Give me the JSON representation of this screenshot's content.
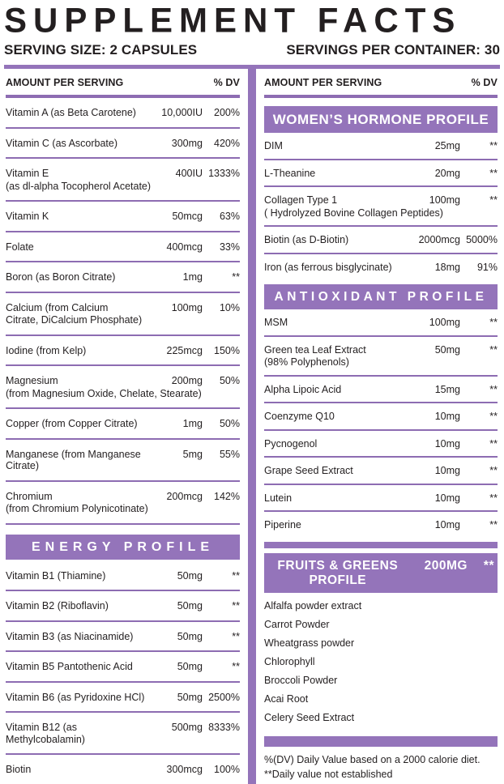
{
  "title": "SUPPLEMENT FACTS",
  "serving_size": "SERVING SIZE: 2 CAPSULES",
  "servings_per_container": "SERVINGS PER CONTAINER: 30",
  "colors": {
    "purple": "#9474ba",
    "text": "#231f20",
    "banner_text": "#ffffff"
  },
  "left_column": {
    "header": {
      "amount_label": "AMOUNT PER SERVING",
      "dv_label": "% DV"
    },
    "vitamins_minerals_rows": [
      {
        "name": "Vitamin A (as Beta Carotene)",
        "amount": "10,000IU",
        "dv": "200%"
      },
      {
        "name": "Vitamin C (as Ascorbate)",
        "amount": "300mg",
        "dv": "420%"
      },
      {
        "name": "Vitamin E",
        "sub": "(as dl-alpha Tocopherol Acetate)",
        "amount": "400IU",
        "dv": "1333%"
      },
      {
        "name": "Vitamin K",
        "amount": "50mcg",
        "dv": "63%"
      },
      {
        "name": "Folate",
        "amount": "400mcg",
        "dv": "33%"
      },
      {
        "name": "Boron (as Boron Citrate)",
        "amount": "1mg",
        "dv": "**"
      },
      {
        "name": "Calcium (from Calcium",
        "sub": "Citrate, DiCalcium Phosphate)",
        "amount": "100mg",
        "dv": "10%"
      },
      {
        "name": "Iodine (from Kelp)",
        "amount": "225mcg",
        "dv": "150%"
      },
      {
        "name": "Magnesium",
        "sub": "(from Magnesium Oxide, Chelate, Stearate)",
        "amount": "200mg",
        "dv": "50%"
      },
      {
        "name": "Copper (from Copper Citrate)",
        "amount": "1mg",
        "dv": "50%"
      },
      {
        "name": "Manganese (from Manganese Citrate)",
        "amount": "5mg",
        "dv": "55%"
      },
      {
        "name": "Chromium",
        "sub": "(from Chromium Polynicotinate)",
        "amount": "200mcg",
        "dv": "142%"
      }
    ],
    "energy_profile": {
      "title": "ENERGY PROFILE",
      "rows": [
        {
          "name": "Vitamin B1 (Thiamine)",
          "amount": "50mg",
          "dv": "**"
        },
        {
          "name": "Vitamin B2 (Riboflavin)",
          "amount": "50mg",
          "dv": "**"
        },
        {
          "name": "Vitamin B3 (as Niacinamide)",
          "amount": "50mg",
          "dv": "**"
        },
        {
          "name": "Vitamin B5 Pantothenic Acid",
          "amount": "50mg",
          "dv": "**"
        },
        {
          "name": "Vitamin B6 (as Pyridoxine HCl)",
          "amount": "50mg",
          "dv": "2500%"
        },
        {
          "name": "Vitamin B12 (as Methylcobalamin)",
          "amount": "500mg",
          "dv": "8333%"
        },
        {
          "name": "Biotin",
          "amount": "300mcg",
          "dv": "100%"
        }
      ]
    }
  },
  "right_column": {
    "header": {
      "amount_label": "AMOUNT PER SERVING",
      "dv_label": "% DV"
    },
    "womens_hormone_profile": {
      "title": "WOMEN’S HORMONE PROFILE",
      "rows": [
        {
          "name": "DIM",
          "amount": "25mg",
          "dv": "**"
        },
        {
          "name": "L-Theanine",
          "amount": "20mg",
          "dv": "**"
        },
        {
          "name": "Collagen Type 1",
          "sub": "( Hydrolyzed Bovine Collagen Peptides)",
          "amount": "100mg",
          "dv": "**"
        },
        {
          "name": "Biotin (as D-Biotin)",
          "amount": "2000mcg",
          "dv": "5000%"
        },
        {
          "name": "Iron (as ferrous bisglycinate)",
          "amount": "18mg",
          "dv": "91%"
        }
      ]
    },
    "antioxidant_profile": {
      "title": "ANTIOXIDANT PROFILE",
      "rows": [
        {
          "name": "MSM",
          "amount": "100mg",
          "dv": "**"
        },
        {
          "name": "Green tea Leaf Extract",
          "sub": "(98% Polyphenols)",
          "amount": "50mg",
          "dv": "**"
        },
        {
          "name": "Alpha Lipoic Acid",
          "amount": "15mg",
          "dv": "**"
        },
        {
          "name": "Coenzyme Q10",
          "amount": "10mg",
          "dv": "**"
        },
        {
          "name": "Pycnogenol",
          "amount": "10mg",
          "dv": "**"
        },
        {
          "name": "Grape Seed Extract",
          "amount": "10mg",
          "dv": "**"
        },
        {
          "name": "Lutein",
          "amount": "10mg",
          "dv": "**"
        },
        {
          "name": "Piperine",
          "amount": "10mg",
          "dv": "**"
        }
      ]
    },
    "fruits_greens_profile": {
      "title": "FRUITS & GREENS PROFILE",
      "amount": "200MG",
      "dv": "**",
      "items": [
        "Alfalfa powder extract",
        "Carrot Powder",
        "Wheatgrass powder",
        "Chlorophyll",
        "Broccoli Powder",
        "Acai Root",
        "Celery Seed Extract"
      ]
    },
    "footnotes": [
      "%(DV) Daily Value based on a 2000 calorie diet.",
      "**Daily value not established"
    ]
  }
}
